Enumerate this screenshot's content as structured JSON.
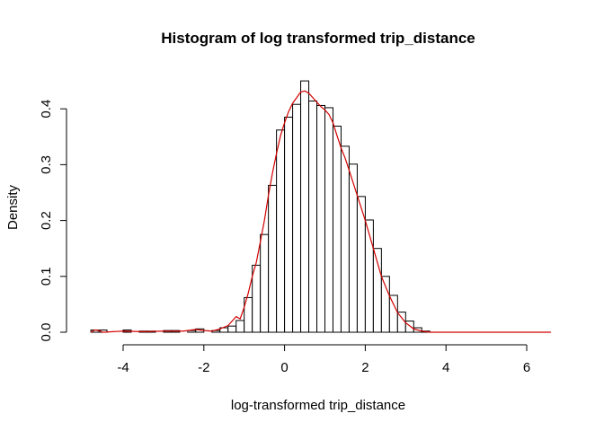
{
  "chart_data": {
    "type": "bar",
    "title": "Histogram of log transformed trip_distance",
    "xlabel": "log-transformed trip_distance",
    "ylabel": "Density",
    "xlim": [
      -4.8,
      6.6
    ],
    "ylim": [
      0,
      0.45
    ],
    "x_ticks": [
      "-4",
      "-2",
      "0",
      "2",
      "4",
      "6"
    ],
    "x_tick_values": [
      -4,
      -2,
      0,
      2,
      4,
      6
    ],
    "y_ticks": [
      "0.0",
      "0.1",
      "0.2",
      "0.3",
      "0.4"
    ],
    "y_tick_values": [
      0,
      0.1,
      0.2,
      0.3,
      0.4
    ],
    "bin_width": 0.2,
    "bins": {
      "x_start": [
        -4.8,
        -4.6,
        -4.4,
        -4.2,
        -4.0,
        -3.8,
        -3.6,
        -3.4,
        -3.2,
        -3.0,
        -2.8,
        -2.6,
        -2.4,
        -2.2,
        -2.0,
        -1.8,
        -1.6,
        -1.4,
        -1.2,
        -1.0,
        -0.8,
        -0.6,
        -0.4,
        -0.2,
        0.0,
        0.2,
        0.4,
        0.6,
        0.8,
        1.0,
        1.2,
        1.4,
        1.6,
        1.8,
        2.0,
        2.2,
        2.4,
        2.6,
        2.8,
        3.0,
        3.2,
        3.4
      ],
      "density": [
        0.004,
        0.004,
        0.0,
        0.0,
        0.004,
        0.0,
        0.002,
        0.002,
        0.0,
        0.003,
        0.003,
        0.0,
        0.003,
        0.006,
        0.0,
        0.003,
        0.008,
        0.011,
        0.021,
        0.062,
        0.12,
        0.175,
        0.263,
        0.362,
        0.385,
        0.408,
        0.45,
        0.414,
        0.406,
        0.402,
        0.369,
        0.333,
        0.301,
        0.243,
        0.201,
        0.15,
        0.1,
        0.066,
        0.036,
        0.02,
        0.008,
        0.002
      ]
    },
    "density_curve": {
      "color": "#d40000",
      "x": [
        -4.8,
        -4.7,
        -4.6,
        -4.5,
        -4.0,
        -3.5,
        -3.0,
        -2.5,
        -2.2,
        -2.0,
        -1.8,
        -1.6,
        -1.4,
        -1.2,
        -1.1,
        -1.0,
        -0.9,
        -0.8,
        -0.7,
        -0.6,
        -0.5,
        -0.4,
        -0.3,
        -0.2,
        -0.1,
        0.0,
        0.1,
        0.2,
        0.3,
        0.4,
        0.5,
        0.6,
        0.7,
        0.8,
        0.9,
        1.0,
        1.1,
        1.2,
        1.3,
        1.4,
        1.5,
        1.6,
        1.8,
        2.0,
        2.2,
        2.4,
        2.6,
        2.8,
        3.0,
        3.2,
        3.4,
        3.6,
        4.0,
        5.0,
        6.6
      ],
      "y": [
        0.0,
        0.004,
        0.003,
        0.0,
        0.002,
        0.001,
        0.002,
        0.002,
        0.005,
        0.003,
        0.002,
        0.006,
        0.012,
        0.028,
        0.024,
        0.045,
        0.07,
        0.1,
        0.125,
        0.162,
        0.2,
        0.245,
        0.285,
        0.32,
        0.352,
        0.375,
        0.395,
        0.41,
        0.42,
        0.43,
        0.432,
        0.428,
        0.42,
        0.412,
        0.404,
        0.398,
        0.39,
        0.375,
        0.352,
        0.33,
        0.312,
        0.29,
        0.245,
        0.2,
        0.15,
        0.1,
        0.065,
        0.035,
        0.017,
        0.006,
        0.002,
        0.0,
        0.0,
        0.0,
        0.0
      ]
    }
  }
}
